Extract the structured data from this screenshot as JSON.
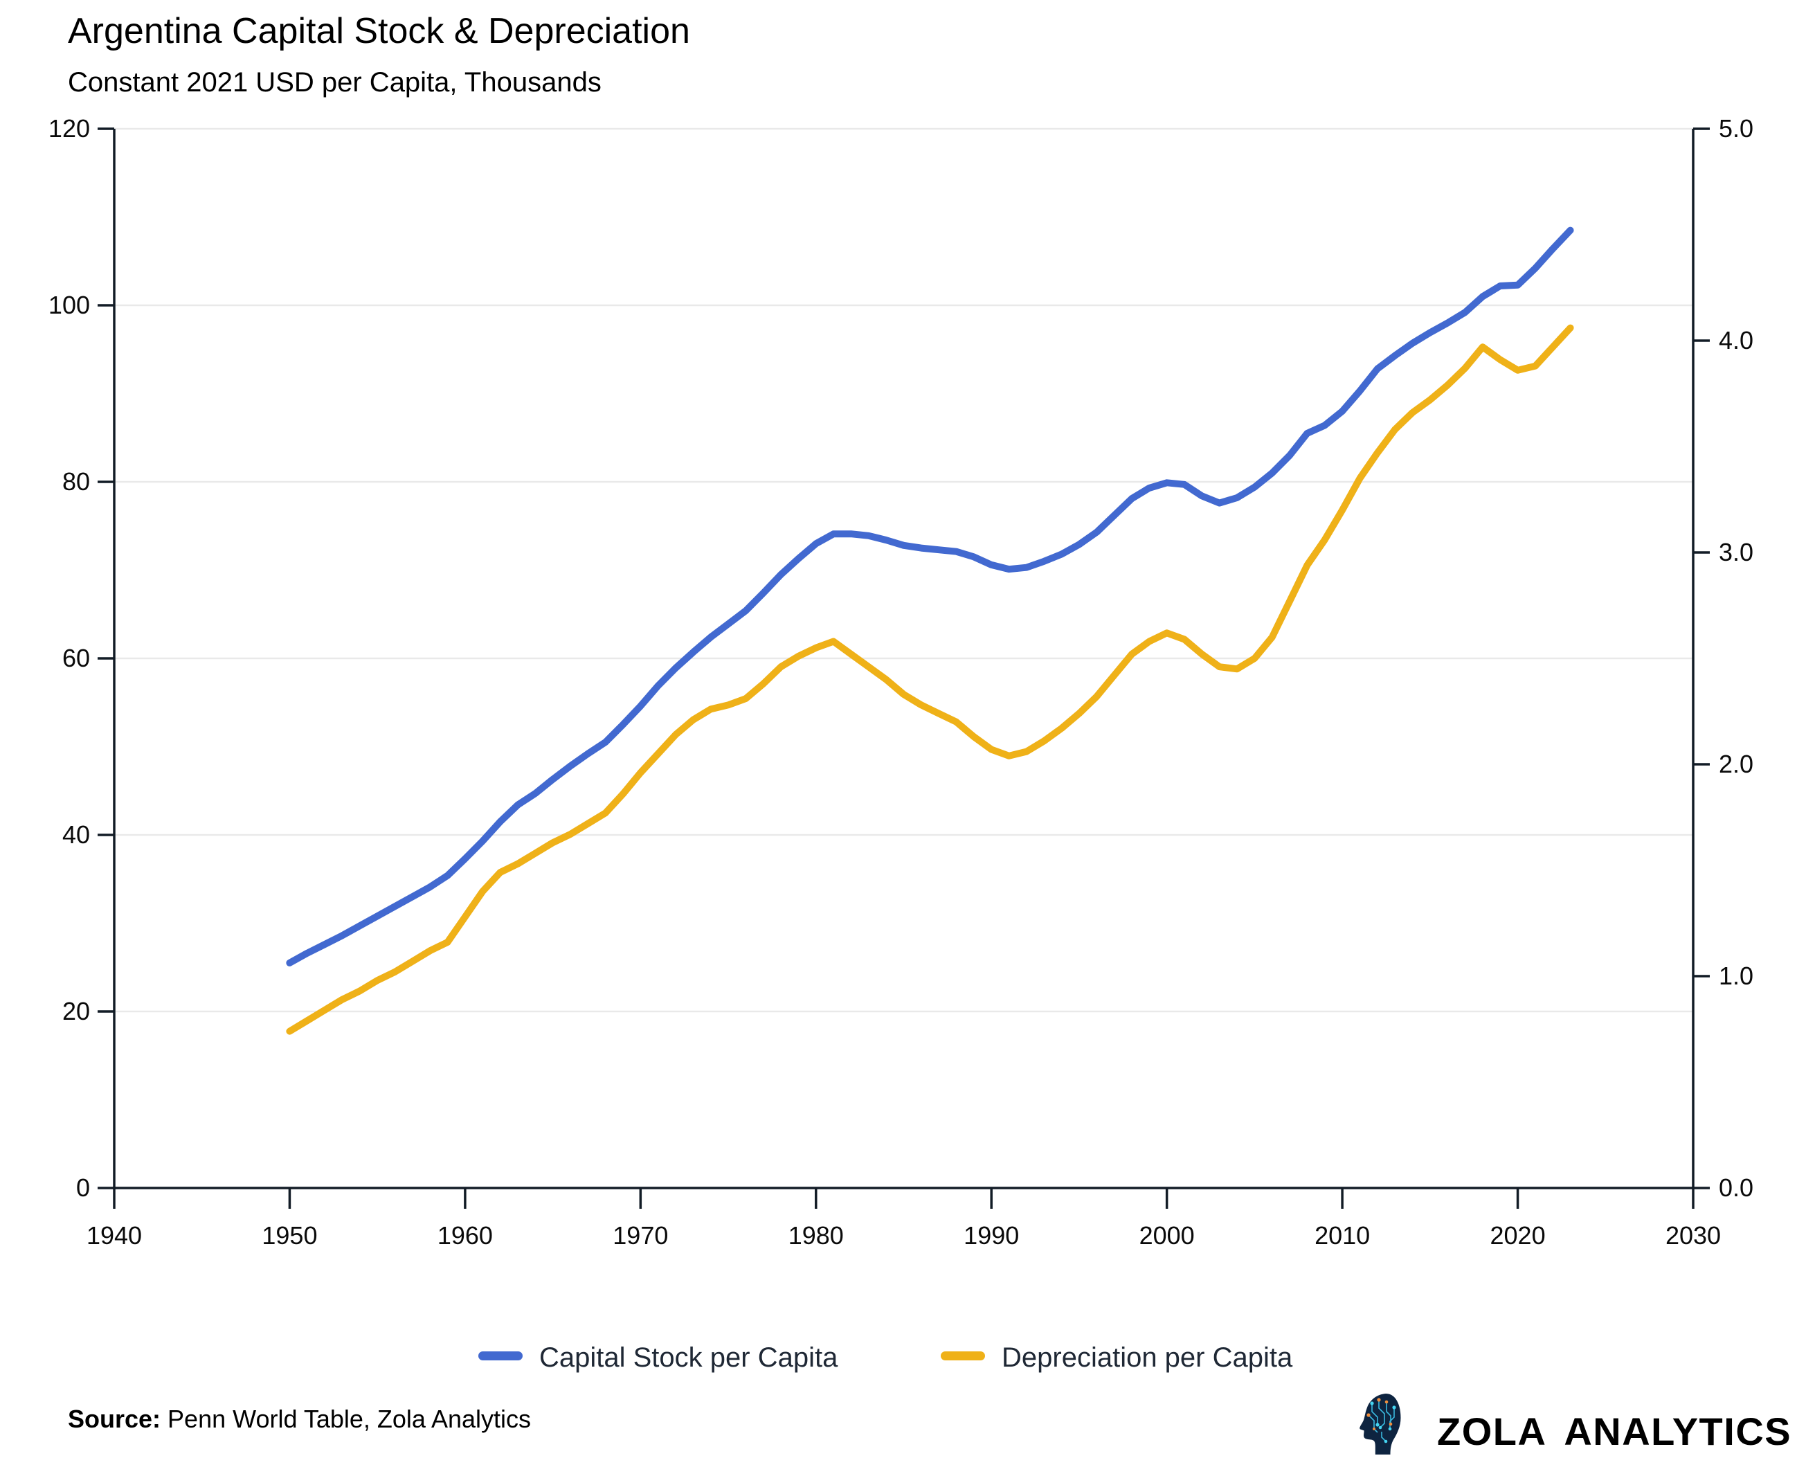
{
  "header": {
    "title": "Argentina Capital Stock & Depreciation",
    "subtitle": "Constant 2021 USD per Capita, Thousands"
  },
  "legend": [
    {
      "label": "Capital Stock per Capita",
      "color": "#4269d0"
    },
    {
      "label": "Depreciation per Capita",
      "color": "#efb118"
    }
  ],
  "source": {
    "label": "Source:",
    "text": " Penn World Table, Zola Analytics"
  },
  "branding": {
    "name": "ZOLA ANALYTICS",
    "icon": "circuit-head-logo"
  },
  "colors": {
    "capital_stock_line": "#4269d0",
    "depreciation_line": "#efb118",
    "grid": "#e9e9e9",
    "axis": "#121c26",
    "tick_text": "#0a0a0a",
    "legend_text": "#1f2835",
    "logo_head": "#0e2440",
    "logo_trace": "#3ab8de",
    "logo_node_accent": "#ef8d3c"
  },
  "axes": {
    "x": {
      "tick_labels": [
        "1940",
        "1950",
        "1960",
        "1970",
        "1980",
        "1990",
        "2000",
        "2010",
        "2020",
        "2030"
      ],
      "range": [
        1940,
        2030
      ]
    },
    "y_left": {
      "tick_labels": [
        "0",
        "20",
        "40",
        "60",
        "80",
        "100",
        "120"
      ],
      "range": [
        0,
        120
      ]
    },
    "y_right": {
      "tick_labels": [
        "0.0",
        "1.0",
        "2.0",
        "3.0",
        "4.0",
        "5.0"
      ],
      "range": [
        0,
        5
      ]
    }
  },
  "chart_data": {
    "type": "line",
    "title": "Argentina Capital Stock & Depreciation",
    "subtitle": "Constant 2021 USD per Capita, Thousands",
    "grid": "horizontal",
    "legend_position": "bottom-center",
    "x_range": [
      1940,
      2030
    ],
    "y_left_range": [
      0,
      120
    ],
    "y_right_range": [
      0,
      5
    ],
    "x": [
      1950,
      1951,
      1952,
      1953,
      1954,
      1955,
      1956,
      1957,
      1958,
      1959,
      1960,
      1961,
      1962,
      1963,
      1964,
      1965,
      1966,
      1967,
      1968,
      1969,
      1970,
      1971,
      1972,
      1973,
      1974,
      1975,
      1976,
      1977,
      1978,
      1979,
      1980,
      1981,
      1982,
      1983,
      1984,
      1985,
      1986,
      1987,
      1988,
      1989,
      1990,
      1991,
      1992,
      1993,
      1994,
      1995,
      1996,
      1997,
      1998,
      1999,
      2000,
      2001,
      2002,
      2003,
      2004,
      2005,
      2006,
      2007,
      2008,
      2009,
      2010,
      2011,
      2012,
      2013,
      2014,
      2015,
      2016,
      2017,
      2018,
      2019,
      2020,
      2021,
      2022,
      2023
    ],
    "series": [
      {
        "name": "Capital Stock per Capita",
        "axis": "left",
        "color": "#4269d0",
        "values": [
          25.5,
          26.6,
          27.6,
          28.6,
          29.7,
          30.8,
          31.9,
          33.0,
          34.1,
          35.4,
          37.3,
          39.3,
          41.5,
          43.4,
          44.7,
          46.3,
          47.8,
          49.2,
          50.5,
          52.5,
          54.6,
          56.9,
          58.9,
          60.7,
          62.4,
          63.9,
          65.4,
          67.4,
          69.5,
          71.3,
          73.0,
          74.1,
          74.1,
          73.9,
          73.4,
          72.8,
          72.5,
          72.3,
          72.1,
          71.5,
          70.6,
          70.1,
          70.3,
          71.0,
          71.8,
          72.9,
          74.3,
          76.2,
          78.1,
          79.3,
          79.9,
          79.7,
          78.4,
          77.6,
          78.2,
          79.4,
          81.0,
          83.0,
          85.5,
          86.4,
          88.0,
          90.3,
          92.8,
          94.3,
          95.7,
          96.9,
          98.0,
          99.2,
          101.0,
          102.2,
          102.3,
          104.2,
          106.4,
          108.5
        ]
      },
      {
        "name": "Depreciation per Capita",
        "axis": "right",
        "color": "#efb118",
        "values": [
          0.74,
          0.79,
          0.84,
          0.89,
          0.93,
          0.98,
          1.02,
          1.07,
          1.12,
          1.16,
          1.28,
          1.4,
          1.49,
          1.53,
          1.58,
          1.63,
          1.67,
          1.72,
          1.77,
          1.86,
          1.96,
          2.05,
          2.14,
          2.21,
          2.26,
          2.28,
          2.31,
          2.38,
          2.46,
          2.51,
          2.55,
          2.58,
          2.52,
          2.46,
          2.4,
          2.33,
          2.28,
          2.24,
          2.2,
          2.13,
          2.07,
          2.04,
          2.06,
          2.11,
          2.17,
          2.24,
          2.32,
          2.42,
          2.52,
          2.58,
          2.62,
          2.59,
          2.52,
          2.46,
          2.45,
          2.5,
          2.6,
          2.77,
          2.94,
          3.06,
          3.2,
          3.35,
          3.47,
          3.58,
          3.66,
          3.72,
          3.79,
          3.87,
          3.97,
          3.91,
          3.86,
          3.88,
          3.97,
          4.06
        ]
      }
    ]
  }
}
